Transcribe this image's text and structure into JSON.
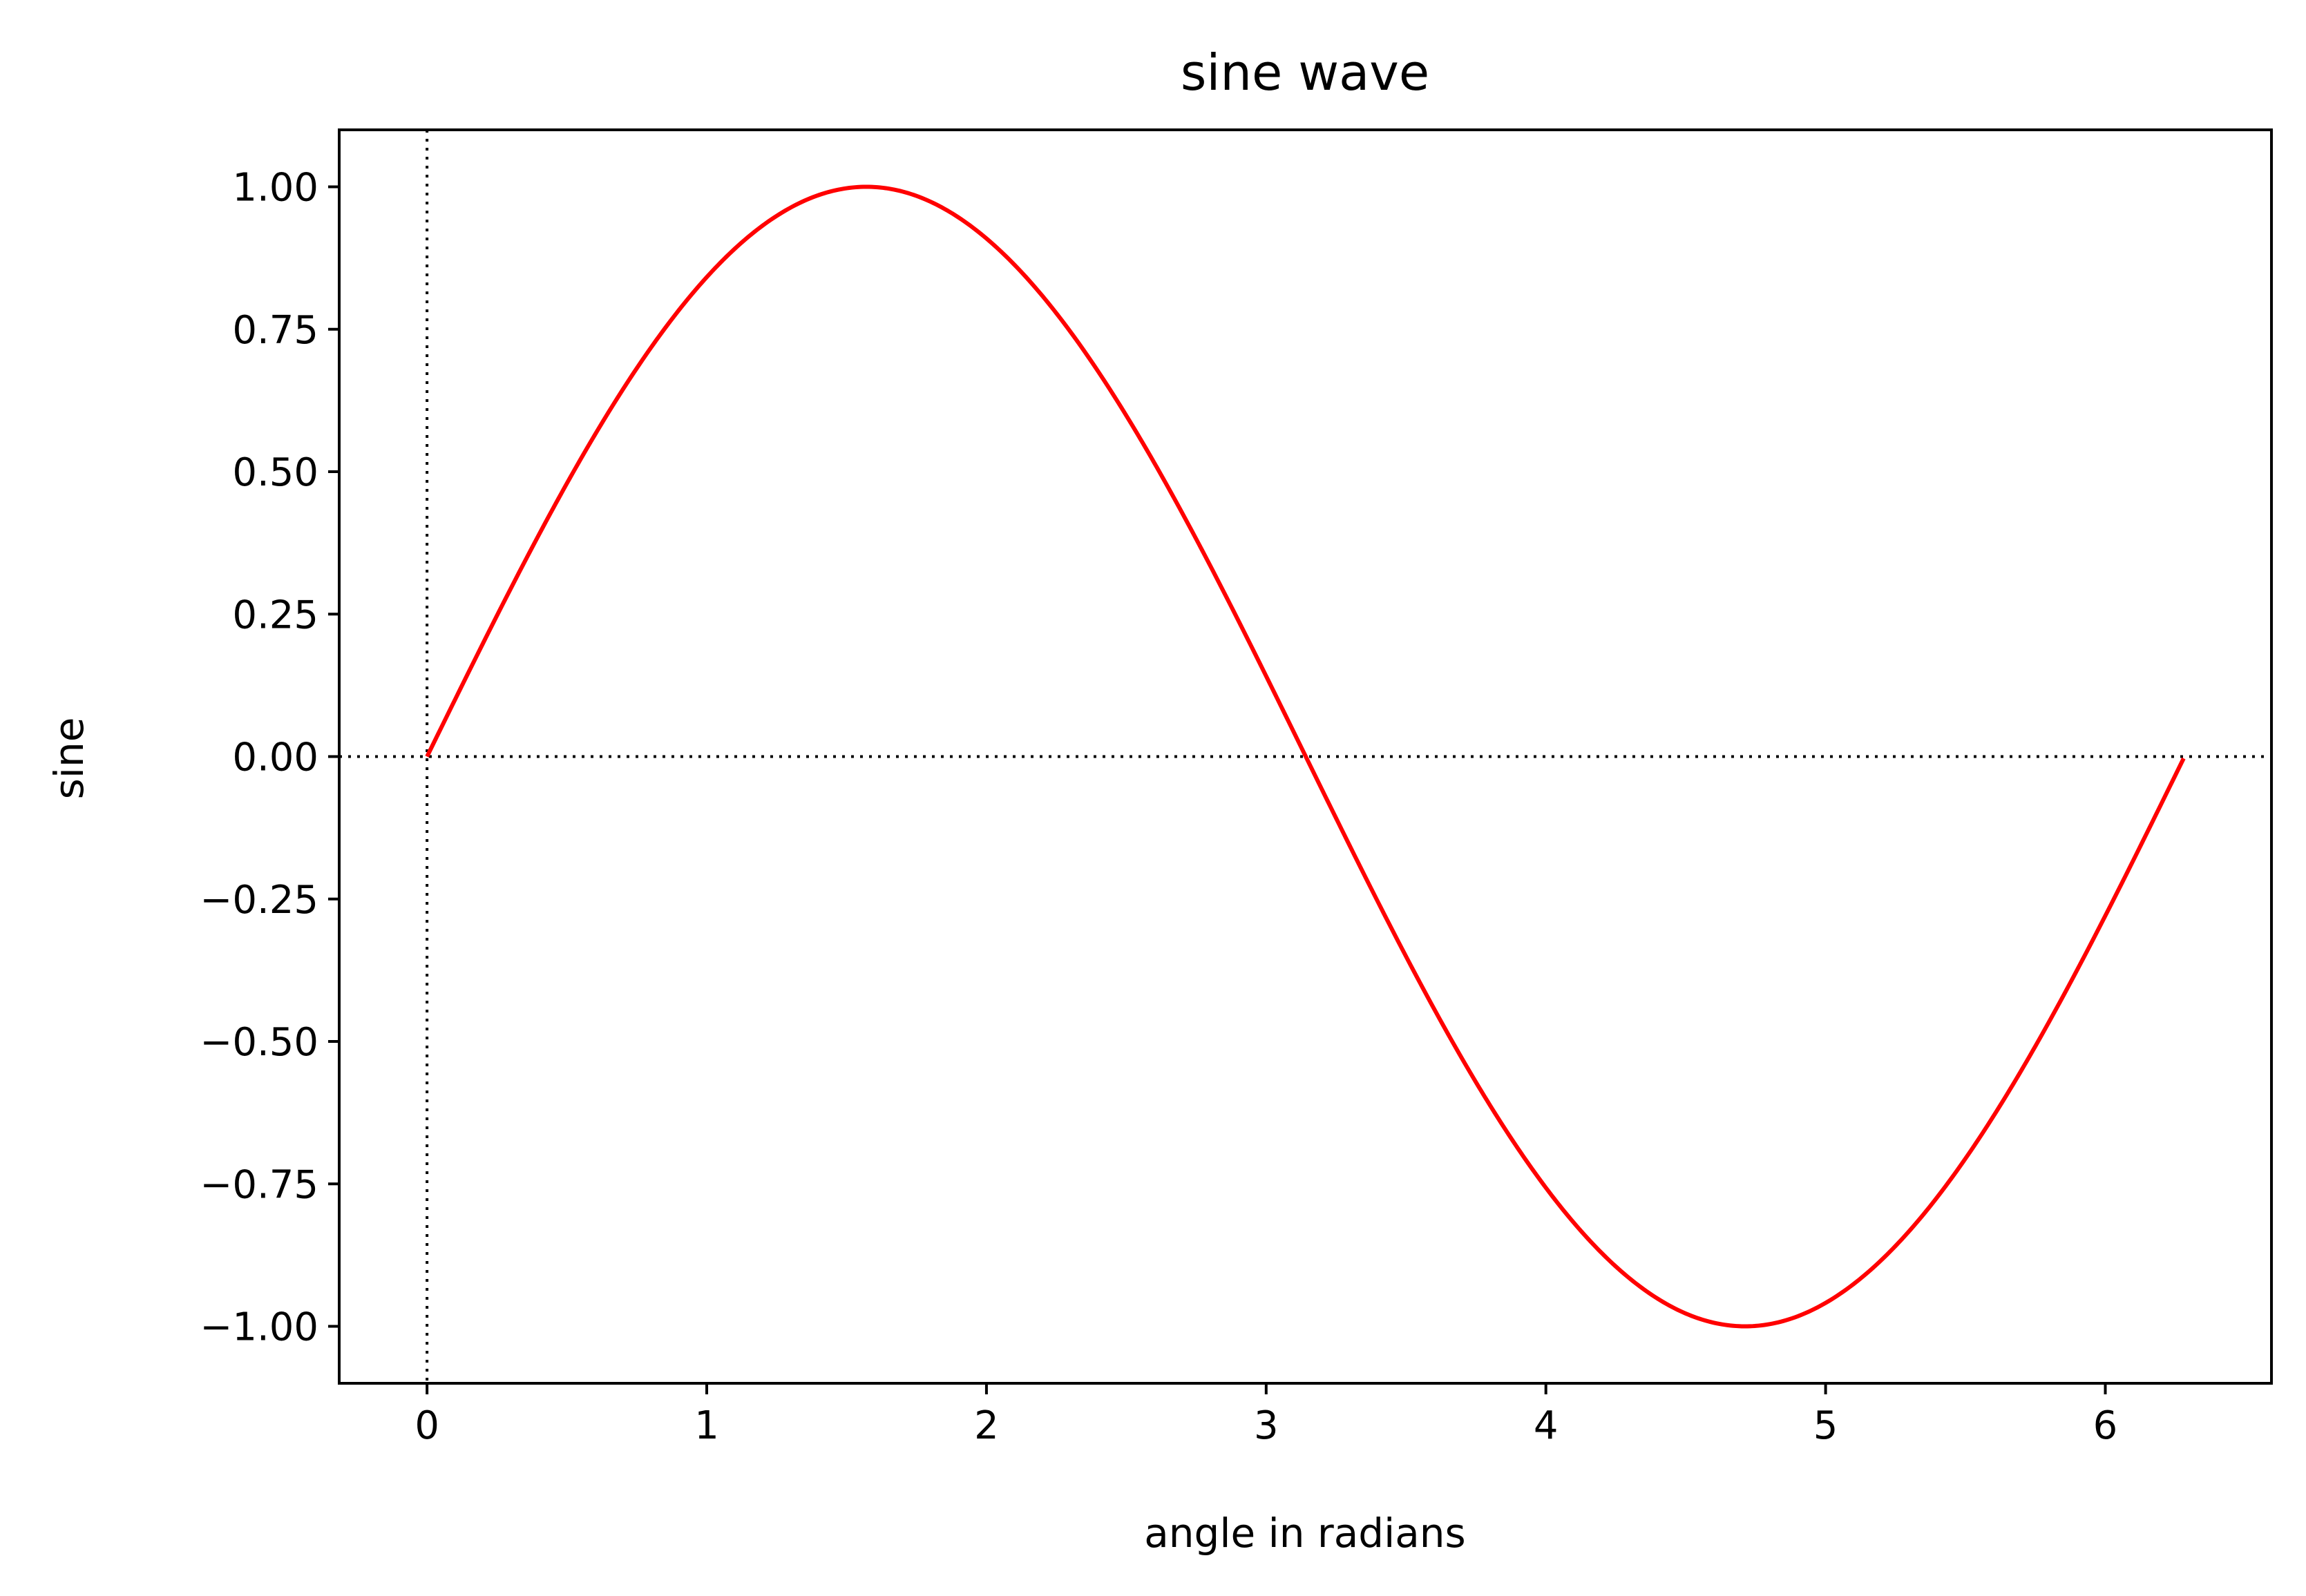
{
  "chart_data": {
    "type": "line",
    "title": "sine wave",
    "xlabel": "angle in radians",
    "ylabel": "sine",
    "xlim": [
      -0.314,
      6.594
    ],
    "ylim": [
      -1.1,
      1.1
    ],
    "xticks": [
      0,
      1,
      2,
      3,
      4,
      5,
      6
    ],
    "xtick_labels": [
      "0",
      "1",
      "2",
      "3",
      "4",
      "5",
      "6"
    ],
    "yticks": [
      1.0,
      0.75,
      0.5,
      0.25,
      0.0,
      -0.25,
      -0.5,
      -0.75,
      -1.0
    ],
    "ytick_labels": [
      "1.00",
      "0.75",
      "0.50",
      "0.25",
      "0.00",
      "−0.25",
      "−0.50",
      "−0.75",
      "−1.00"
    ],
    "grid": false,
    "reference_lines": [
      {
        "orientation": "vertical",
        "value": 0,
        "style": "dotted",
        "color": "#000000"
      },
      {
        "orientation": "horizontal",
        "value": 0,
        "style": "dotted",
        "color": "#000000"
      }
    ],
    "series": [
      {
        "color": "#ff0000",
        "function": "sin(x)",
        "x_start": 0,
        "x_end": 6.28,
        "x_step": 0.01
      }
    ]
  }
}
